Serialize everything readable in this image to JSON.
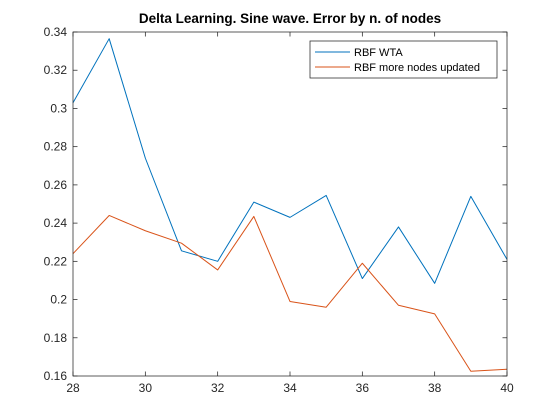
{
  "chart_data": {
    "type": "line",
    "title": "Delta Learning. Sine wave. Error by n. of nodes",
    "xlabel": "",
    "ylabel": "",
    "xlim": [
      28,
      40
    ],
    "ylim": [
      0.16,
      0.34
    ],
    "xticks": [
      28,
      30,
      32,
      34,
      36,
      38,
      40
    ],
    "xtick_labels": [
      "28",
      "30",
      "32",
      "34",
      "36",
      "38",
      "40"
    ],
    "yticks": [
      0.16,
      0.18,
      0.2,
      0.22,
      0.24,
      0.26,
      0.28,
      0.3,
      0.32,
      0.34
    ],
    "ytick_labels": [
      "0.16",
      "0.18",
      "0.2",
      "0.22",
      "0.24",
      "0.26",
      "0.28",
      "0.3",
      "0.32",
      "0.34"
    ],
    "grid": false,
    "legend_position": "top-right",
    "x": [
      28,
      29,
      30,
      31,
      32,
      33,
      34,
      35,
      36,
      37,
      38,
      39,
      40
    ],
    "series": [
      {
        "name": "RBF WTA",
        "color": "#0072BD",
        "values": [
          0.303,
          0.3365,
          0.274,
          0.2255,
          0.22,
          0.251,
          0.243,
          0.2545,
          0.211,
          0.238,
          0.2085,
          0.254,
          0.221
        ]
      },
      {
        "name": "RBF more nodes updated",
        "color": "#D95319",
        "values": [
          0.224,
          0.244,
          0.236,
          0.2295,
          0.2155,
          0.2435,
          0.199,
          0.196,
          0.219,
          0.197,
          0.1925,
          0.1625,
          0.1635
        ]
      }
    ]
  }
}
